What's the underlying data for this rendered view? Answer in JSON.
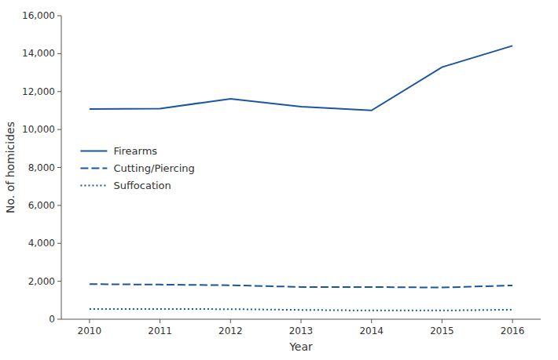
{
  "chart_data": {
    "type": "line",
    "x": [
      2010,
      2011,
      2012,
      2013,
      2014,
      2015,
      2016
    ],
    "series": [
      {
        "name": "Firearms",
        "color": "#1a56a0",
        "line_style": "solid",
        "values": [
          11078,
          11101,
          11622,
          11208,
          11008,
          13286,
          14415
        ]
      },
      {
        "name": "Cutting/Piercing",
        "color": "#1a56a0",
        "line_style": "dashed",
        "values": [
          1850,
          1825,
          1790,
          1700,
          1698,
          1670,
          1781
        ]
      },
      {
        "name": "Suffocation",
        "color": "#1a56a0",
        "line_style": "dotted",
        "values": [
          540,
          540,
          530,
          490,
          460,
          460,
          502
        ]
      }
    ],
    "xlabel": "Year",
    "ylabel": "No. of homicides",
    "xlim": [
      2009.6,
      2016.4
    ],
    "xticks": [
      2010,
      2011,
      2012,
      2013,
      2014,
      2015,
      2016
    ],
    "ylim": [
      0,
      16000
    ],
    "yticks": [
      0,
      {
        "value": 2000,
        "label": "2,000"
      },
      {
        "value": 4000,
        "label": "4,000"
      },
      {
        "value": 6000,
        "label": "6,000"
      },
      {
        "value": 8000,
        "label": "8,000"
      },
      {
        "value": 10000,
        "label": "10,000"
      },
      {
        "value": 12000,
        "label": "12,000"
      },
      {
        "value": 14000,
        "label": "14,000"
      },
      {
        "value": 16000,
        "label": "16,000"
      }
    ],
    "grid": false,
    "legend": "left"
  }
}
